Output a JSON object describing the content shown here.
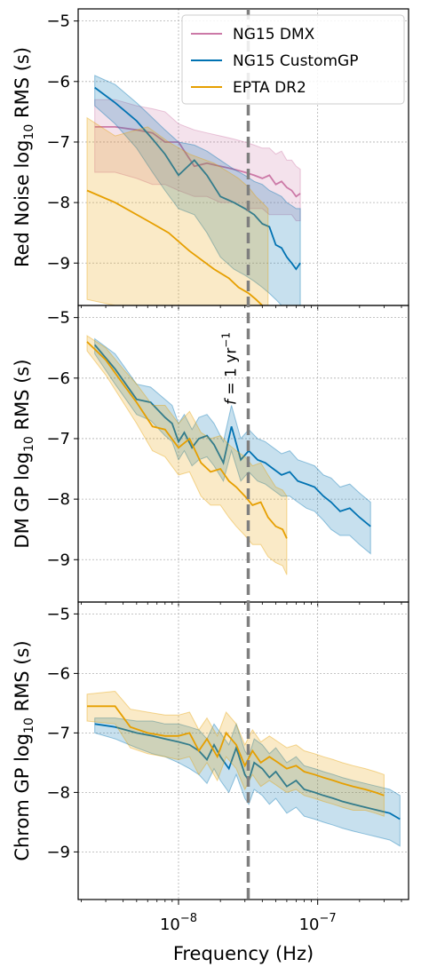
{
  "chart_data": {
    "type": "line",
    "xlabel": "Frequency (Hz)",
    "x_scale": "log",
    "x_tick_labels": [
      "10^-8",
      "10^-7"
    ],
    "xlim": [
      1.9e-09,
      4.5e-07
    ],
    "annotation": "f = 1 yr^-1",
    "annotation_x": 3.17e-08,
    "colors": {
      "NG15 DMX": "#cc79a7",
      "NG15 CustomGP": "#0072b2",
      "EPTA DR2": "#e69f00"
    },
    "legend": {
      "placement": "top-right",
      "entries": [
        "NG15 DMX",
        "NG15 CustomGP",
        "EPTA DR2"
      ]
    },
    "panels": [
      {
        "ylabel": "Red Noise log10 RMS (s)",
        "ylabel_main": "Red Noise log",
        "ylabel_sub": "10",
        "ylabel_tail": " RMS (s)",
        "ylim": [
          -9.7,
          -4.8
        ],
        "y_ticks": [
          "-5",
          "-6",
          "-7",
          "-8",
          "-9"
        ],
        "grid": true,
        "series": [
          {
            "name": "NG15 DMX",
            "x": [
              2.5e-09,
              3.5e-09,
              5e-09,
              6.5e-09,
              8e-09,
              1e-08,
              1.3e-08,
              1.6e-08,
              2e-08,
              2.5e-08,
              3e-08,
              3.5e-08,
              4e-08,
              4.5e-08,
              5e-08,
              5.5e-08,
              6e-08,
              6.5e-08,
              7e-08,
              7.5e-08
            ],
            "y": [
              -6.75,
              -6.75,
              -6.8,
              -6.85,
              -7.0,
              -7.0,
              -7.4,
              -7.35,
              -7.4,
              -7.45,
              -7.5,
              -7.55,
              -7.6,
              -7.55,
              -7.7,
              -7.65,
              -7.75,
              -7.8,
              -7.9,
              -7.85
            ],
            "lower": [
              -7.5,
              -7.5,
              -7.6,
              -7.7,
              -7.7,
              -7.8,
              -7.9,
              -7.9,
              -8.0,
              -8.0,
              -8.1,
              -8.1,
              -8.1,
              -8.2,
              -8.2,
              -8.2,
              -8.2,
              -8.2,
              -8.3,
              -8.3
            ],
            "upper": [
              -6.3,
              -6.3,
              -6.4,
              -6.45,
              -6.5,
              -6.7,
              -6.8,
              -6.85,
              -6.9,
              -6.95,
              -7.0,
              -7.05,
              -7.1,
              -7.1,
              -7.2,
              -7.15,
              -7.3,
              -7.3,
              -7.4,
              -7.45
            ]
          },
          {
            "name": "NG15 CustomGP",
            "x": [
              2.5e-09,
              3.5e-09,
              5e-09,
              6.5e-09,
              8e-09,
              1e-08,
              1.3e-08,
              1.6e-08,
              2e-08,
              2.5e-08,
              3e-08,
              3.5e-08,
              4e-08,
              4.5e-08,
              5e-08,
              5.5e-08,
              6e-08,
              6.5e-08,
              7e-08,
              7.5e-08
            ],
            "y": [
              -6.1,
              -6.35,
              -6.65,
              -6.95,
              -7.2,
              -7.55,
              -7.3,
              -7.55,
              -7.9,
              -8.0,
              -8.1,
              -8.2,
              -8.35,
              -8.4,
              -8.7,
              -8.75,
              -8.9,
              -9.0,
              -9.1,
              -9.0
            ],
            "lower": [
              -6.4,
              -6.7,
              -7.1,
              -7.5,
              -7.8,
              -8.1,
              -8.2,
              -8.5,
              -8.9,
              -9.1,
              -9.2,
              -9.3,
              -9.4,
              -9.5,
              -9.6,
              -9.7,
              -9.7,
              -9.7,
              -9.7,
              -9.7
            ],
            "upper": [
              -5.9,
              -6.05,
              -6.35,
              -6.6,
              -6.8,
              -7.0,
              -7.05,
              -7.15,
              -7.3,
              -7.45,
              -7.55,
              -7.65,
              -7.7,
              -7.8,
              -7.85,
              -7.9,
              -8.0,
              -8.05,
              -8.1,
              -8.1
            ]
          },
          {
            "name": "EPTA DR2",
            "x": [
              2.2e-09,
              3.5e-09,
              6e-09,
              8.5e-09,
              1.2e-08,
              1.8e-08,
              2.3e-08,
              2.7e-08,
              3.2e-08,
              3.6e-08,
              4e-08,
              4.4e-08
            ],
            "y": [
              -7.8,
              -8.0,
              -8.3,
              -8.5,
              -8.8,
              -9.1,
              -9.25,
              -9.4,
              -9.5,
              -9.6,
              -9.7,
              -9.8
            ],
            "lower": [
              -9.6,
              -9.7,
              -9.7,
              -9.7,
              -9.7,
              -9.7,
              -9.7,
              -9.7,
              -9.7,
              -9.7,
              -9.7,
              -9.7
            ],
            "upper": [
              -6.6,
              -6.9,
              -6.75,
              -7.0,
              -7.2,
              -7.35,
              -7.5,
              -7.6,
              -7.75,
              -7.9,
              -8.0,
              -8.1
            ]
          }
        ]
      },
      {
        "ylabel": "DM GP log10 RMS (s)",
        "ylabel_main": "DM GP log",
        "ylabel_sub": "10",
        "ylabel_tail": " RMS (s)",
        "ylim": [
          -9.7,
          -4.8
        ],
        "y_ticks": [
          "-5",
          "-6",
          "-7",
          "-8",
          "-9"
        ],
        "grid": true,
        "series": [
          {
            "name": "NG15 CustomGP",
            "x": [
              2.5e-09,
              3.5e-09,
              5e-09,
              6.3e-09,
              8e-09,
              9e-09,
              1e-08,
              1.1e-08,
              1.25e-08,
              1.4e-08,
              1.6e-08,
              1.8e-08,
              2.1e-08,
              2.4e-08,
              2.8e-08,
              3.2e-08,
              3.7e-08,
              4.2e-08,
              4.8e-08,
              5.5e-08,
              6.3e-08,
              7.2e-08,
              8.3e-08,
              9.5e-08,
              1.1e-07,
              1.25e-07,
              1.45e-07,
              1.7e-07,
              2e-07,
              2.4e-07
            ],
            "y": [
              -5.45,
              -5.85,
              -6.35,
              -6.4,
              -6.65,
              -6.75,
              -7.05,
              -6.9,
              -7.15,
              -7.0,
              -6.95,
              -7.1,
              -7.4,
              -6.8,
              -7.35,
              -7.2,
              -7.35,
              -7.4,
              -7.5,
              -7.6,
              -7.55,
              -7.7,
              -7.75,
              -7.8,
              -7.95,
              -8.05,
              -8.2,
              -8.15,
              -8.3,
              -8.45
            ],
            "lower": [
              -5.6,
              -6.1,
              -6.6,
              -6.7,
              -6.95,
              -7.05,
              -7.35,
              -7.2,
              -7.45,
              -7.35,
              -7.3,
              -7.45,
              -7.7,
              -7.2,
              -7.7,
              -7.55,
              -7.7,
              -7.75,
              -7.85,
              -7.95,
              -7.95,
              -8.05,
              -8.15,
              -8.2,
              -8.35,
              -8.5,
              -8.6,
              -8.6,
              -8.75,
              -8.9
            ],
            "upper": [
              -5.35,
              -5.6,
              -6.1,
              -6.15,
              -6.35,
              -6.45,
              -6.75,
              -6.6,
              -6.85,
              -6.65,
              -6.6,
              -6.75,
              -7.05,
              -6.45,
              -7.0,
              -6.85,
              -7.0,
              -7.05,
              -7.15,
              -7.25,
              -7.2,
              -7.35,
              -7.4,
              -7.45,
              -7.6,
              -7.65,
              -7.8,
              -7.75,
              -7.9,
              -8.05
            ]
          },
          {
            "name": "EPTA DR2",
            "x": [
              2.2e-09,
              3e-09,
              4e-09,
              5e-09,
              6.5e-09,
              8e-09,
              1e-08,
              1.2e-08,
              1.45e-08,
              1.7e-08,
              2e-08,
              2.3e-08,
              2.6e-08,
              3e-08,
              3.4e-08,
              3.9e-08,
              4.4e-08,
              5e-08,
              5.6e-08,
              6e-08
            ],
            "y": [
              -5.4,
              -5.7,
              -6.1,
              -6.4,
              -6.8,
              -6.85,
              -7.15,
              -7.0,
              -7.4,
              -7.55,
              -7.5,
              -7.7,
              -7.8,
              -7.95,
              -8.1,
              -8.05,
              -8.3,
              -8.45,
              -8.5,
              -8.65
            ],
            "lower": [
              -5.55,
              -5.95,
              -6.4,
              -6.75,
              -7.2,
              -7.3,
              -7.6,
              -7.55,
              -7.95,
              -8.1,
              -8.1,
              -8.3,
              -8.45,
              -8.6,
              -8.75,
              -8.75,
              -8.95,
              -9.05,
              -9.1,
              -9.25
            ],
            "upper": [
              -5.3,
              -5.5,
              -5.85,
              -6.1,
              -6.45,
              -6.45,
              -6.75,
              -6.55,
              -6.9,
              -7.0,
              -6.95,
              -7.1,
              -7.2,
              -7.3,
              -7.45,
              -7.4,
              -7.6,
              -7.8,
              -7.85,
              -7.95
            ]
          }
        ]
      },
      {
        "ylabel": "Chrom GP log10 RMS (s)",
        "ylabel_main": "Chrom GP log",
        "ylabel_sub": "10",
        "ylabel_tail": " RMS (s)",
        "ylim": [
          -9.8,
          -4.8
        ],
        "y_ticks": [
          "-5",
          "-6",
          "-7",
          "-8",
          "-9"
        ],
        "grid": true,
        "series": [
          {
            "name": "NG15 CustomGP",
            "x": [
              2.5e-09,
              3.5e-09,
              5e-09,
              6.5e-09,
              8e-09,
              1e-08,
              1.2e-08,
              1.4e-08,
              1.6e-08,
              1.8e-08,
              2e-08,
              2.3e-08,
              2.6e-08,
              3e-08,
              3.2e-08,
              3.5e-08,
              4e-08,
              4.5e-08,
              5e-08,
              6e-08,
              7e-08,
              8e-08,
              9.5e-08,
              1.1e-07,
              1.3e-07,
              1.5e-07,
              1.8e-07,
              2.2e-07,
              2.7e-07,
              3.3e-07,
              3.9e-07
            ],
            "y": [
              -6.85,
              -6.9,
              -7.0,
              -7.05,
              -7.1,
              -7.15,
              -7.2,
              -7.3,
              -7.45,
              -7.2,
              -7.4,
              -7.6,
              -7.25,
              -7.7,
              -7.8,
              -7.5,
              -7.6,
              -7.75,
              -7.65,
              -7.9,
              -7.8,
              -7.95,
              -8.0,
              -8.05,
              -8.1,
              -8.15,
              -8.2,
              -8.25,
              -8.3,
              -8.35,
              -8.45
            ],
            "lower": [
              -7.0,
              -7.1,
              -7.25,
              -7.35,
              -7.4,
              -7.5,
              -7.6,
              -7.7,
              -7.85,
              -7.6,
              -7.8,
              -8.0,
              -7.7,
              -8.1,
              -8.2,
              -7.95,
              -8.05,
              -8.2,
              -8.1,
              -8.35,
              -8.25,
              -8.4,
              -8.45,
              -8.5,
              -8.55,
              -8.6,
              -8.65,
              -8.7,
              -8.75,
              -8.8,
              -8.9
            ],
            "upper": [
              -6.75,
              -6.75,
              -6.8,
              -6.8,
              -6.85,
              -6.85,
              -6.9,
              -6.95,
              -7.1,
              -6.85,
              -7.0,
              -7.2,
              -6.85,
              -7.3,
              -7.4,
              -7.1,
              -7.2,
              -7.35,
              -7.25,
              -7.5,
              -7.4,
              -7.55,
              -7.6,
              -7.65,
              -7.7,
              -7.75,
              -7.8,
              -7.85,
              -7.9,
              -7.95,
              -8.05
            ]
          },
          {
            "name": "EPTA DR2",
            "x": [
              2.2e-09,
              3.5e-09,
              4.5e-09,
              6e-09,
              8e-09,
              1e-08,
              1.2e-08,
              1.4e-08,
              1.6e-08,
              1.9e-08,
              2.2e-08,
              2.6e-08,
              3e-08,
              3.4e-08,
              3.9e-08,
              4.5e-08,
              5.2e-08,
              6e-08,
              7e-08,
              8e-08,
              9.5e-08,
              1.1e-07,
              1.3e-07,
              1.5e-07,
              1.8e-07,
              2.2e-07,
              2.6e-07,
              3e-07
            ],
            "y": [
              -6.55,
              -6.55,
              -6.9,
              -7.0,
              -7.05,
              -7.05,
              -7.0,
              -7.3,
              -7.1,
              -7.4,
              -7.0,
              -7.2,
              -7.55,
              -7.3,
              -7.5,
              -7.4,
              -7.5,
              -7.6,
              -7.55,
              -7.65,
              -7.7,
              -7.75,
              -7.8,
              -7.85,
              -7.9,
              -7.95,
              -8.0,
              -8.05
            ],
            "lower": [
              -6.8,
              -6.85,
              -7.25,
              -7.35,
              -7.4,
              -7.45,
              -7.4,
              -7.7,
              -7.5,
              -7.8,
              -7.4,
              -7.6,
              -7.95,
              -7.7,
              -7.9,
              -7.8,
              -7.9,
              -8.0,
              -7.95,
              -8.05,
              -8.1,
              -8.15,
              -8.2,
              -8.25,
              -8.3,
              -8.3,
              -8.35,
              -8.4
            ],
            "upper": [
              -6.35,
              -6.3,
              -6.6,
              -6.65,
              -6.7,
              -6.7,
              -6.65,
              -6.95,
              -6.75,
              -7.05,
              -6.65,
              -6.85,
              -7.2,
              -6.95,
              -7.15,
              -7.05,
              -7.15,
              -7.25,
              -7.2,
              -7.3,
              -7.35,
              -7.4,
              -7.45,
              -7.5,
              -7.55,
              -7.6,
              -7.65,
              -7.7
            ]
          }
        ]
      }
    ]
  }
}
